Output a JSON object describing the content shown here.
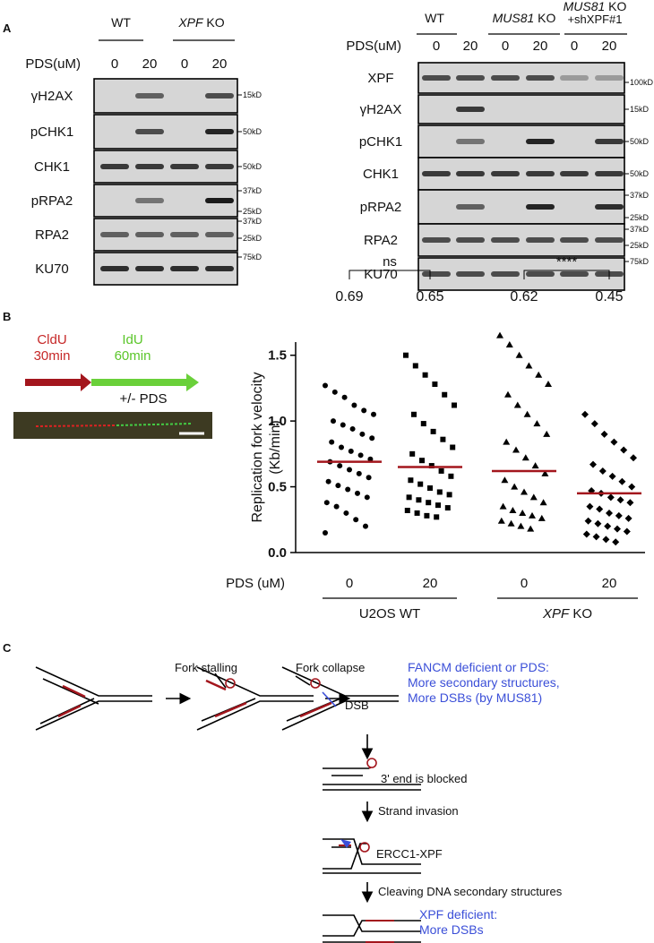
{
  "panel_labels": [
    "A",
    "B",
    "C"
  ],
  "blot_left": {
    "groups": [
      [
        "WT"
      ],
      [
        "XPF",
        " KO"
      ]
    ],
    "treatment_label": "PDS(uM)",
    "doses": [
      0,
      20,
      0,
      20
    ],
    "rows": [
      "γH2AX",
      "pCHK1",
      "CHK1",
      "pRPA2",
      "RPA2",
      "KU70"
    ],
    "markers": [
      "15kD",
      "50kD",
      "50kD",
      "37kD",
      "25kD",
      "37kD",
      "25kD",
      "75kD"
    ]
  },
  "blot_right": {
    "groups": [
      [
        "WT"
      ],
      [
        "MUS81",
        " KO"
      ],
      [
        "MUS81",
        " KO"
      ]
    ],
    "group_note": "+shXPF#1",
    "treatment_label": "PDS(uM)",
    "doses": [
      0,
      20,
      0,
      20,
      0,
      20
    ],
    "rows": [
      "XPF",
      "γH2AX",
      "pCHK1",
      "CHK1",
      "pRPA2",
      "RPA2",
      "KU70"
    ],
    "markers": [
      "100kD",
      "15kD",
      "50kD",
      "50kD",
      "37kD",
      "25kD",
      "37kD",
      "25kD",
      "75kD"
    ]
  },
  "fiber": {
    "first": [
      "CldU",
      "30min"
    ],
    "second": [
      "IdU",
      "60min"
    ],
    "treatment": "+/- PDS"
  },
  "chart": {
    "type": "scatter",
    "ylabel": [
      "Replication fork velocity",
      "(Kb/min)"
    ],
    "ylim": [
      0,
      1.6
    ],
    "yticks": [
      {
        "value": 0,
        "label": "0.0"
      },
      {
        "value": 0.5,
        "label": "0.5"
      },
      {
        "value": 1,
        "label": "1.0"
      },
      {
        "value": 1.5,
        "label": "1.5"
      }
    ],
    "treatment_label": "PDS (uM)",
    "doses": [
      0,
      20,
      0,
      20
    ],
    "groups": [
      [
        "U2OS WT"
      ],
      [
        "XPF",
        " KO"
      ]
    ],
    "means": [
      0.69,
      0.65,
      0.62,
      0.45
    ],
    "significance": [
      "ns",
      "****"
    ],
    "color": "#000000",
    "mean_color": "#a3161d",
    "points": [
      [
        1.27,
        1.22,
        1.18,
        1.12,
        1.08,
        1.05,
        1.0,
        0.97,
        0.94,
        0.9,
        0.87,
        0.84,
        0.8,
        0.77,
        0.74,
        0.71,
        0.69,
        0.66,
        0.63,
        0.6,
        0.57,
        0.54,
        0.51,
        0.48,
        0.45,
        0.42,
        0.38,
        0.35,
        0.3,
        0.25,
        0.2,
        0.15
      ],
      [
        1.5,
        1.42,
        1.35,
        1.28,
        1.2,
        1.12,
        1.05,
        0.98,
        0.92,
        0.86,
        0.8,
        0.75,
        0.7,
        0.66,
        0.62,
        0.58,
        0.55,
        0.52,
        0.49,
        0.46,
        0.44,
        0.42,
        0.4,
        0.38,
        0.36,
        0.34,
        0.32,
        0.3,
        0.28,
        0.27
      ],
      [
        1.65,
        1.58,
        1.5,
        1.42,
        1.35,
        1.28,
        1.2,
        1.12,
        1.05,
        0.98,
        0.9,
        0.84,
        0.78,
        0.72,
        0.66,
        0.6,
        0.55,
        0.5,
        0.46,
        0.42,
        0.38,
        0.35,
        0.32,
        0.3,
        0.28,
        0.26,
        0.24,
        0.22,
        0.2,
        0.18
      ],
      [
        1.05,
        0.98,
        0.9,
        0.84,
        0.78,
        0.72,
        0.67,
        0.62,
        0.58,
        0.54,
        0.5,
        0.47,
        0.45,
        0.42,
        0.4,
        0.38,
        0.35,
        0.33,
        0.3,
        0.28,
        0.26,
        0.24,
        0.22,
        0.2,
        0.18,
        0.16,
        0.14,
        0.12,
        0.1,
        0.08
      ]
    ]
  },
  "model": {
    "steps": [
      "Fork stalling",
      "Fork collapse",
      "DSB",
      "3' end is blocked",
      "Strand invasion",
      "ERCC1-XPF",
      "Cleaving DNA secondary structures"
    ],
    "note_top": [
      "FANCM deficient or PDS:",
      "More secondary structures,",
      "More DSBs (by MUS81)"
    ],
    "note_bottom": [
      "XPF deficient:",
      "More DSBs"
    ]
  }
}
